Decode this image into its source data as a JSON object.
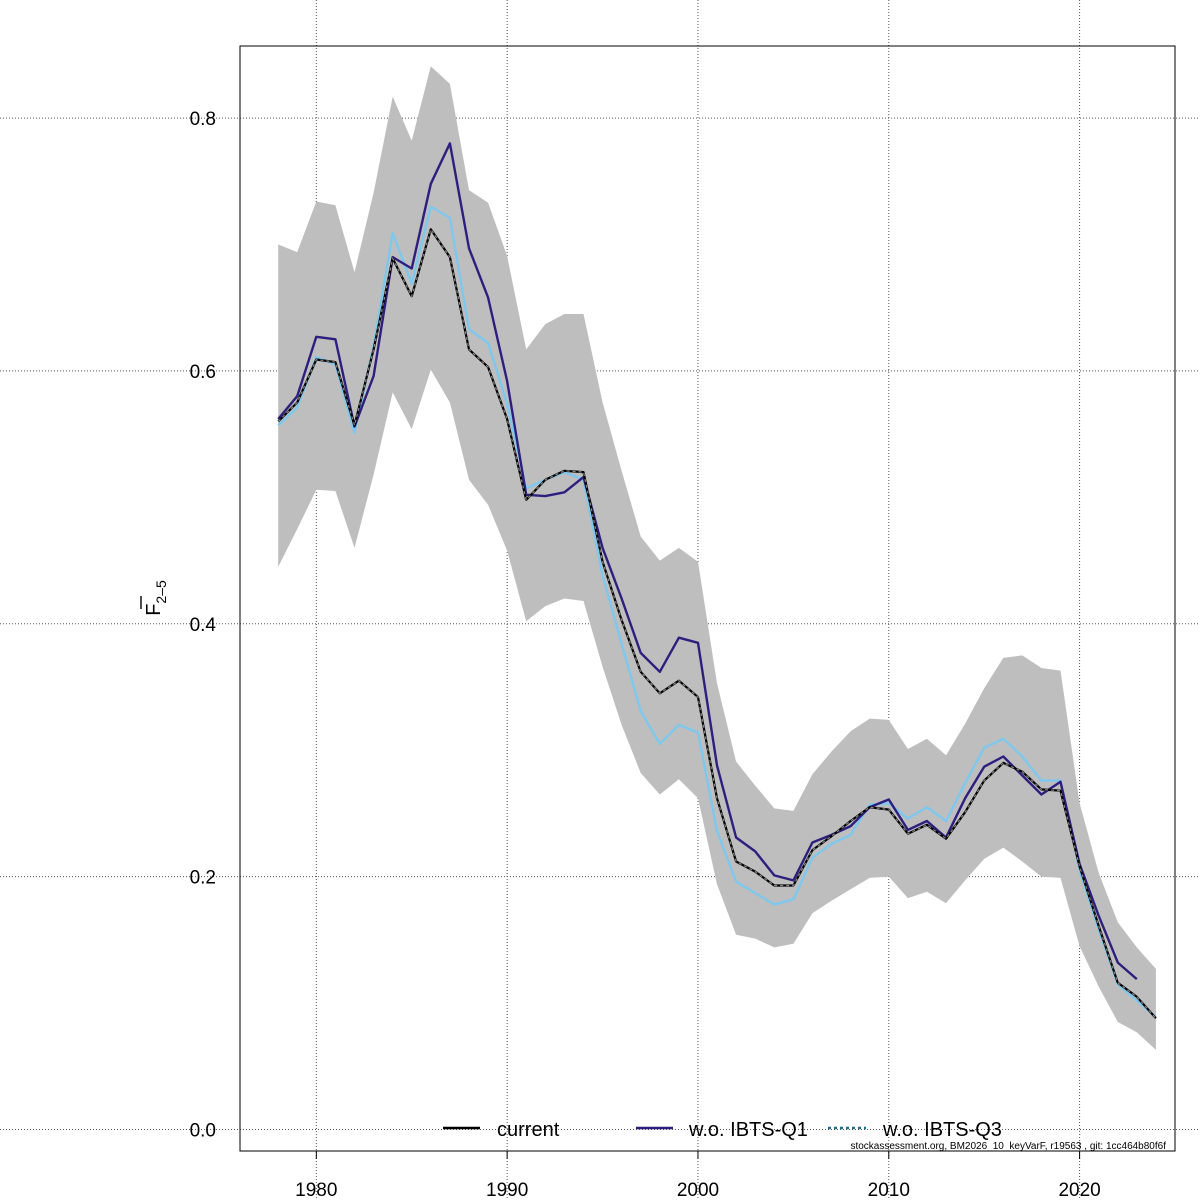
{
  "chart_data": {
    "type": "line",
    "ylabel": {
      "main": "F",
      "sub": "2–5"
    },
    "xlim": [
      1976,
      2025
    ],
    "ylim": [
      -0.017,
      0.857
    ],
    "x_ticks": [
      1980,
      1990,
      2000,
      2010,
      2020
    ],
    "x_tick_labels": [
      "1980",
      "1990",
      "2000",
      "2010",
      "2020"
    ],
    "y_ticks": [
      0.0,
      0.2,
      0.4,
      0.6,
      0.8
    ],
    "y_tick_labels": [
      "0.0",
      "0.2",
      "0.4",
      "0.6",
      "0.8"
    ],
    "grid": true,
    "legend_position": "bottom",
    "footer_note": "stockassessment.org, BM2026_10_keyVarF, r19563 , git: 1cc464b80f6f",
    "colors": {
      "band": "#bebebe",
      "current": "#000000",
      "w.o. IBTS-Q1": "#2e1e7e",
      "w.o. IBTS-Q3": "#7ec8ee",
      "w.o. IBTS-Q3 legend": "#1f6f8b"
    },
    "years": [
      1978,
      1979,
      1980,
      1981,
      1982,
      1983,
      1984,
      1985,
      1986,
      1987,
      1988,
      1989,
      1990,
      1991,
      1992,
      1993,
      1994,
      1995,
      1996,
      1997,
      1998,
      1999,
      2000,
      2001,
      2002,
      2003,
      2004,
      2005,
      2006,
      2007,
      2008,
      2009,
      2010,
      2011,
      2012,
      2013,
      2014,
      2015,
      2016,
      2017,
      2018,
      2019,
      2020,
      2021,
      2022,
      2023,
      2024
    ],
    "band": {
      "upper": [
        0.7,
        0.694,
        0.734,
        0.731,
        0.678,
        0.741,
        0.817,
        0.782,
        0.841,
        0.827,
        0.743,
        0.733,
        0.691,
        0.617,
        0.637,
        0.645,
        0.645,
        0.575,
        0.521,
        0.469,
        0.45,
        0.46,
        0.449,
        0.353,
        0.291,
        0.272,
        0.254,
        0.252,
        0.281,
        0.299,
        0.315,
        0.325,
        0.324,
        0.301,
        0.309,
        0.296,
        0.321,
        0.349,
        0.373,
        0.375,
        0.365,
        0.363,
        0.258,
        0.203,
        0.164,
        0.144,
        0.127
      ],
      "lower": [
        0.445,
        0.475,
        0.506,
        0.505,
        0.46,
        0.518,
        0.583,
        0.554,
        0.601,
        0.575,
        0.514,
        0.494,
        0.458,
        0.402,
        0.414,
        0.42,
        0.418,
        0.366,
        0.32,
        0.282,
        0.265,
        0.277,
        0.262,
        0.194,
        0.154,
        0.151,
        0.144,
        0.147,
        0.171,
        0.181,
        0.19,
        0.199,
        0.2,
        0.183,
        0.188,
        0.179,
        0.197,
        0.214,
        0.223,
        0.212,
        0.2,
        0.199,
        0.145,
        0.113,
        0.085,
        0.077,
        0.063
      ]
    },
    "series": [
      {
        "name": "current",
        "values": [
          0.56,
          0.575,
          0.609,
          0.607,
          0.557,
          0.617,
          0.689,
          0.659,
          0.712,
          0.69,
          0.617,
          0.603,
          0.562,
          0.498,
          0.514,
          0.521,
          0.52,
          0.449,
          0.403,
          0.362,
          0.345,
          0.355,
          0.342,
          0.262,
          0.212,
          0.204,
          0.193,
          0.193,
          0.221,
          0.232,
          0.244,
          0.255,
          0.253,
          0.234,
          0.241,
          0.23,
          0.251,
          0.276,
          0.29,
          0.283,
          0.269,
          0.268,
          0.208,
          0.161,
          0.116,
          0.105,
          0.088
        ]
      },
      {
        "name": "w.o. IBTS-Q1",
        "values": [
          0.562,
          0.58,
          0.627,
          0.625,
          0.556,
          0.596,
          0.69,
          0.681,
          0.748,
          0.78,
          0.697,
          0.658,
          0.592,
          0.502,
          0.501,
          0.504,
          0.516,
          0.46,
          0.42,
          0.377,
          0.362,
          0.389,
          0.385,
          0.288,
          0.231,
          0.22,
          0.201,
          0.197,
          0.227,
          0.233,
          0.24,
          0.255,
          0.261,
          0.237,
          0.244,
          0.231,
          0.262,
          0.287,
          0.295,
          0.28,
          0.265,
          0.275,
          0.21,
          0.169,
          0.132,
          0.119,
          null
        ]
      },
      {
        "name": "w.o. IBTS-Q3",
        "values": [
          0.557,
          0.571,
          0.611,
          0.605,
          0.551,
          0.62,
          0.709,
          0.669,
          0.73,
          0.721,
          0.633,
          0.622,
          0.574,
          0.507,
          0.514,
          0.52,
          0.514,
          0.438,
          0.384,
          0.331,
          0.305,
          0.32,
          0.314,
          0.236,
          0.196,
          0.187,
          0.178,
          0.182,
          0.215,
          0.226,
          0.233,
          0.257,
          0.258,
          0.246,
          0.255,
          0.244,
          0.274,
          0.302,
          0.309,
          0.295,
          0.276,
          0.276,
          0.205,
          0.158,
          0.115,
          0.102,
          0.089
        ]
      }
    ],
    "legend": [
      "current",
      "w.o. IBTS-Q1",
      "w.o. IBTS-Q3"
    ]
  }
}
